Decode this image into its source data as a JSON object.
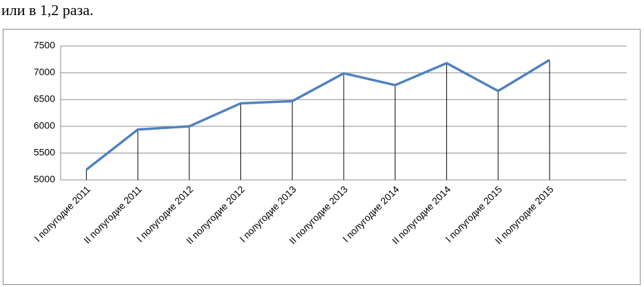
{
  "text": "или в 1,2 раза.",
  "chart_data": {
    "type": "line",
    "categories": [
      "I полугодие 2011",
      "II полугодие 2011",
      "I полугодие 2012",
      "II полугодие 2012",
      "I полугодие 2013",
      "II полугодие 2013",
      "I полугодие 2014",
      "II полугодие 2014",
      "I полугодие 2015",
      "II полугодие 2015",
      null
    ],
    "series": [
      {
        "color": "#4f81bd",
        "values": [
          5190,
          5940,
          6000,
          6430,
          6470,
          6990,
          6770,
          7180,
          6660,
          7240,
          null
        ]
      }
    ],
    "ylim": [
      5000,
      7500
    ],
    "yticks": [
      5000,
      5500,
      6000,
      6500,
      7000,
      7500
    ],
    "grid": true,
    "drop_lines": true
  }
}
